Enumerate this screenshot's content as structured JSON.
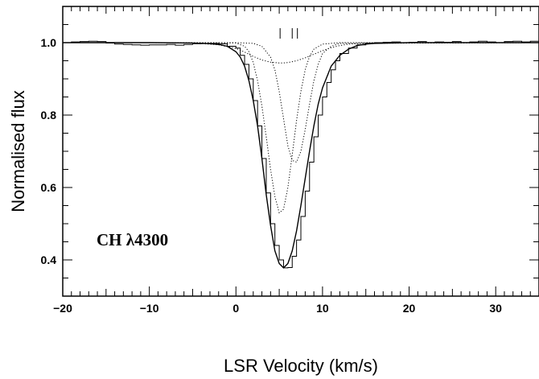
{
  "chart_data": {
    "type": "line",
    "xlabel": "LSR Velocity (km/s)",
    "ylabel": "Normalised flux",
    "xlim": [
      -20,
      35
    ],
    "ylim": [
      0.3,
      1.1
    ],
    "x_major_ticks": [
      -20,
      -10,
      0,
      10,
      20,
      30
    ],
    "x_tick_labels": [
      "−20",
      "−10",
      "0",
      "10",
      "20",
      "30"
    ],
    "y_major_ticks": [
      0.4,
      0.6,
      0.8,
      1.0
    ],
    "y_tick_labels": [
      "0.4",
      "0.6",
      "0.8",
      "1.0"
    ],
    "annotation": "CH λ4300",
    "component_markers_x": [
      5.1,
      6.5,
      7.1
    ],
    "series": [
      {
        "style": "histogram",
        "x": [
          -20,
          -19,
          -18,
          -17,
          -16,
          -15,
          -14,
          -13,
          -12,
          -11,
          -10,
          -9,
          -8,
          -7,
          -6,
          -5,
          -4,
          -3,
          -2,
          -1,
          0,
          0.5,
          1,
          1.5,
          2,
          2.5,
          3,
          3.5,
          4,
          4.5,
          5,
          5.5,
          6,
          6.5,
          7,
          7.5,
          8,
          8.5,
          9,
          9.5,
          10,
          10.5,
          11,
          11.5,
          12,
          13,
          14,
          15,
          16,
          17,
          18,
          19,
          20,
          21,
          22,
          23,
          24,
          25,
          26,
          27,
          28,
          29,
          30,
          31,
          32,
          33,
          34,
          35
        ],
        "y": [
          1.0,
          1.002,
          1.003,
          1.004,
          1.003,
          0.999,
          0.996,
          0.995,
          0.994,
          0.993,
          0.994,
          0.994,
          0.995,
          0.993,
          0.995,
          0.997,
          0.998,
          0.998,
          0.997,
          0.99,
          0.985,
          0.965,
          0.94,
          0.9,
          0.84,
          0.77,
          0.68,
          0.585,
          0.5,
          0.44,
          0.4,
          0.378,
          0.379,
          0.41,
          0.455,
          0.52,
          0.59,
          0.67,
          0.74,
          0.8,
          0.85,
          0.89,
          0.925,
          0.95,
          0.97,
          0.985,
          0.994,
          0.998,
          1.0,
          1.001,
          1.002,
          1.0,
          1.001,
          1.003,
          1.0,
          1.002,
          1.001,
          1.003,
          1.0,
          1.002,
          1.004,
          1.002,
          1.0,
          1.003,
          1.004,
          1.002,
          1.004,
          1.003
        ]
      },
      {
        "style": "solid",
        "x": [
          -20,
          -10,
          -5,
          -3,
          -2,
          -1,
          0,
          0.5,
          1,
          1.5,
          2,
          2.5,
          3,
          3.5,
          4,
          4.5,
          5,
          5.5,
          6,
          6.5,
          7,
          7.5,
          8,
          8.5,
          9,
          9.5,
          10,
          11,
          12,
          13,
          14,
          15,
          16,
          20,
          25,
          35
        ],
        "y": [
          1.0,
          1.0,
          0.999,
          0.997,
          0.995,
          0.99,
          0.975,
          0.96,
          0.935,
          0.895,
          0.84,
          0.77,
          0.68,
          0.58,
          0.495,
          0.425,
          0.39,
          0.378,
          0.39,
          0.425,
          0.48,
          0.55,
          0.625,
          0.7,
          0.77,
          0.83,
          0.875,
          0.935,
          0.965,
          0.982,
          0.992,
          0.996,
          0.998,
          1.0,
          1.0,
          1.0
        ]
      },
      {
        "style": "dotted",
        "x": [
          -20,
          -10,
          -5,
          -2,
          0,
          1,
          2,
          3,
          4,
          5,
          5.5,
          6,
          7,
          8,
          9,
          10,
          11,
          12,
          13,
          15,
          18,
          25,
          35
        ],
        "y": [
          1.0,
          1.0,
          0.999,
          0.994,
          0.984,
          0.974,
          0.962,
          0.952,
          0.946,
          0.944,
          0.944,
          0.945,
          0.95,
          0.958,
          0.968,
          0.978,
          0.986,
          0.992,
          0.996,
          0.999,
          1.0,
          1.0,
          1.0
        ]
      },
      {
        "style": "dotted",
        "x": [
          -20,
          -5,
          0,
          1,
          1.5,
          2,
          2.5,
          3,
          3.5,
          4,
          4.5,
          5,
          5.5,
          6,
          6.5,
          7,
          7.5,
          8,
          8.5,
          9,
          10,
          12,
          35
        ],
        "y": [
          1.0,
          1.0,
          0.999,
          0.99,
          0.975,
          0.945,
          0.895,
          0.825,
          0.74,
          0.65,
          0.575,
          0.53,
          0.54,
          0.6,
          0.69,
          0.785,
          0.865,
          0.925,
          0.962,
          0.982,
          0.996,
          1.0,
          1.0
        ]
      },
      {
        "style": "dotted",
        "x": [
          -20,
          0,
          2,
          3,
          4,
          4.5,
          5,
          5.5,
          6,
          6.5,
          7,
          7.5,
          8,
          8.5,
          9,
          9.5,
          10,
          11,
          12,
          35
        ],
        "y": [
          1.0,
          1.0,
          0.998,
          0.99,
          0.96,
          0.925,
          0.865,
          0.79,
          0.715,
          0.675,
          0.67,
          0.7,
          0.76,
          0.83,
          0.895,
          0.94,
          0.97,
          0.99,
          0.998,
          1.0
        ]
      }
    ]
  }
}
